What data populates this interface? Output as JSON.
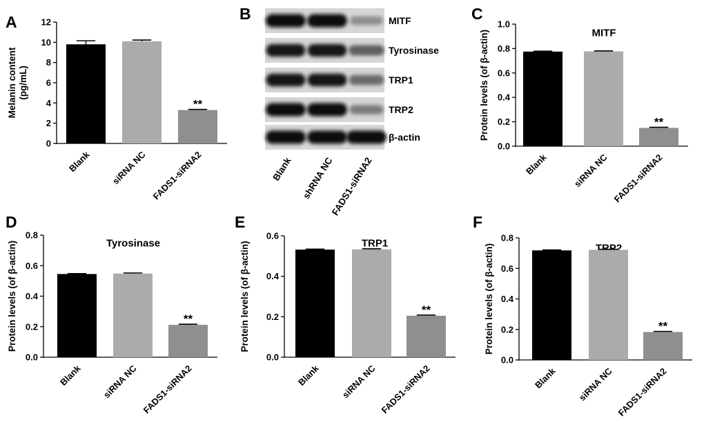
{
  "chart_data": [
    {
      "type": "bar",
      "panel_label": "A",
      "title": "",
      "xlabel": "",
      "ylabel": [
        "Melanin content",
        "(pg/mL)"
      ],
      "ylim": [
        0,
        12
      ],
      "yticks": [
        "0",
        "2",
        "4",
        "6",
        "8",
        "10",
        "12"
      ],
      "categories": [
        "Blank",
        "siRNA NC",
        "FADS1-siRNA2"
      ],
      "values": [
        9.8,
        10.1,
        3.3
      ],
      "errors": [
        0.35,
        0.12,
        0.06
      ],
      "annotations": [
        "",
        "",
        "**"
      ],
      "bar_colors": [
        "#000000",
        "#ababab",
        "#8f8f8f"
      ],
      "grid": false
    },
    {
      "type": "bar",
      "panel_label": "C",
      "title": "MITF",
      "xlabel": "",
      "ylabel": [
        "Protein levels (of β-actin)"
      ],
      "ylim": [
        0,
        1.0
      ],
      "yticks": [
        "0.0",
        "0.2",
        "0.4",
        "0.6",
        "0.8",
        "1.0"
      ],
      "categories": [
        "Blank",
        "siRNA NC",
        "FADS1-siRNA2"
      ],
      "values": [
        0.775,
        0.777,
        0.15
      ],
      "errors": [
        0.004,
        0.004,
        0.005
      ],
      "annotations": [
        "",
        "",
        "**"
      ],
      "bar_colors": [
        "#000000",
        "#ababab",
        "#8f8f8f"
      ],
      "grid": false
    },
    {
      "type": "bar",
      "panel_label": "D",
      "title": "Tyrosinase",
      "xlabel": "",
      "ylabel": [
        "Protein levels (of β-actin)"
      ],
      "ylim": [
        0,
        0.8
      ],
      "yticks": [
        "0.0",
        "0.2",
        "0.4",
        "0.6",
        "0.8"
      ],
      "categories": [
        "Blank",
        "siRNA NC",
        "FADS1-siRNA2"
      ],
      "values": [
        0.545,
        0.548,
        0.212
      ],
      "errors": [
        0.003,
        0.004,
        0.004
      ],
      "annotations": [
        "",
        "",
        "**"
      ],
      "bar_colors": [
        "#000000",
        "#ababab",
        "#8f8f8f"
      ],
      "grid": false
    },
    {
      "type": "bar",
      "panel_label": "E",
      "title": "TRP1",
      "xlabel": "",
      "ylabel": [
        "Protein levels (of β-actin)"
      ],
      "ylim": [
        0,
        0.6
      ],
      "yticks": [
        "0.0",
        "0.2",
        "0.4",
        "0.6"
      ],
      "categories": [
        "Blank",
        "siRNA NC",
        "FADS1-siRNA2"
      ],
      "values": [
        0.532,
        0.533,
        0.205
      ],
      "errors": [
        0.002,
        0.003,
        0.003
      ],
      "annotations": [
        "",
        "",
        "**"
      ],
      "bar_colors": [
        "#000000",
        "#ababab",
        "#8f8f8f"
      ],
      "grid": false
    },
    {
      "type": "bar",
      "panel_label": "F",
      "title": "TRP2",
      "xlabel": "",
      "ylabel": [
        "Protein levels (of β-actin)"
      ],
      "ylim": [
        0,
        0.8
      ],
      "yticks": [
        "0.0",
        "0.2",
        "0.4",
        "0.6",
        "0.8"
      ],
      "categories": [
        "Blank",
        "siRNA NC",
        "FADS1-siRNA2"
      ],
      "values": [
        0.718,
        0.722,
        0.183
      ],
      "errors": [
        0.003,
        0.003,
        0.004
      ],
      "annotations": [
        "",
        "",
        "**"
      ],
      "bar_colors": [
        "#000000",
        "#ababab",
        "#8f8f8f"
      ],
      "grid": false
    }
  ],
  "blot": {
    "panel_label": "B",
    "lanes": [
      "Blank",
      "shRNA NC",
      "FADS1-siRNA2"
    ],
    "bands": [
      {
        "label": "MITF",
        "intensity": [
          1.0,
          1.0,
          0.3
        ]
      },
      {
        "label": "Tyrosinase",
        "intensity": [
          0.92,
          0.92,
          0.55
        ]
      },
      {
        "label": "TRP1",
        "intensity": [
          0.95,
          0.95,
          0.5
        ]
      },
      {
        "label": "TRP2",
        "intensity": [
          1.0,
          1.0,
          0.4
        ]
      },
      {
        "label": "β-actin",
        "intensity": [
          1.0,
          1.0,
          1.0
        ]
      }
    ]
  }
}
